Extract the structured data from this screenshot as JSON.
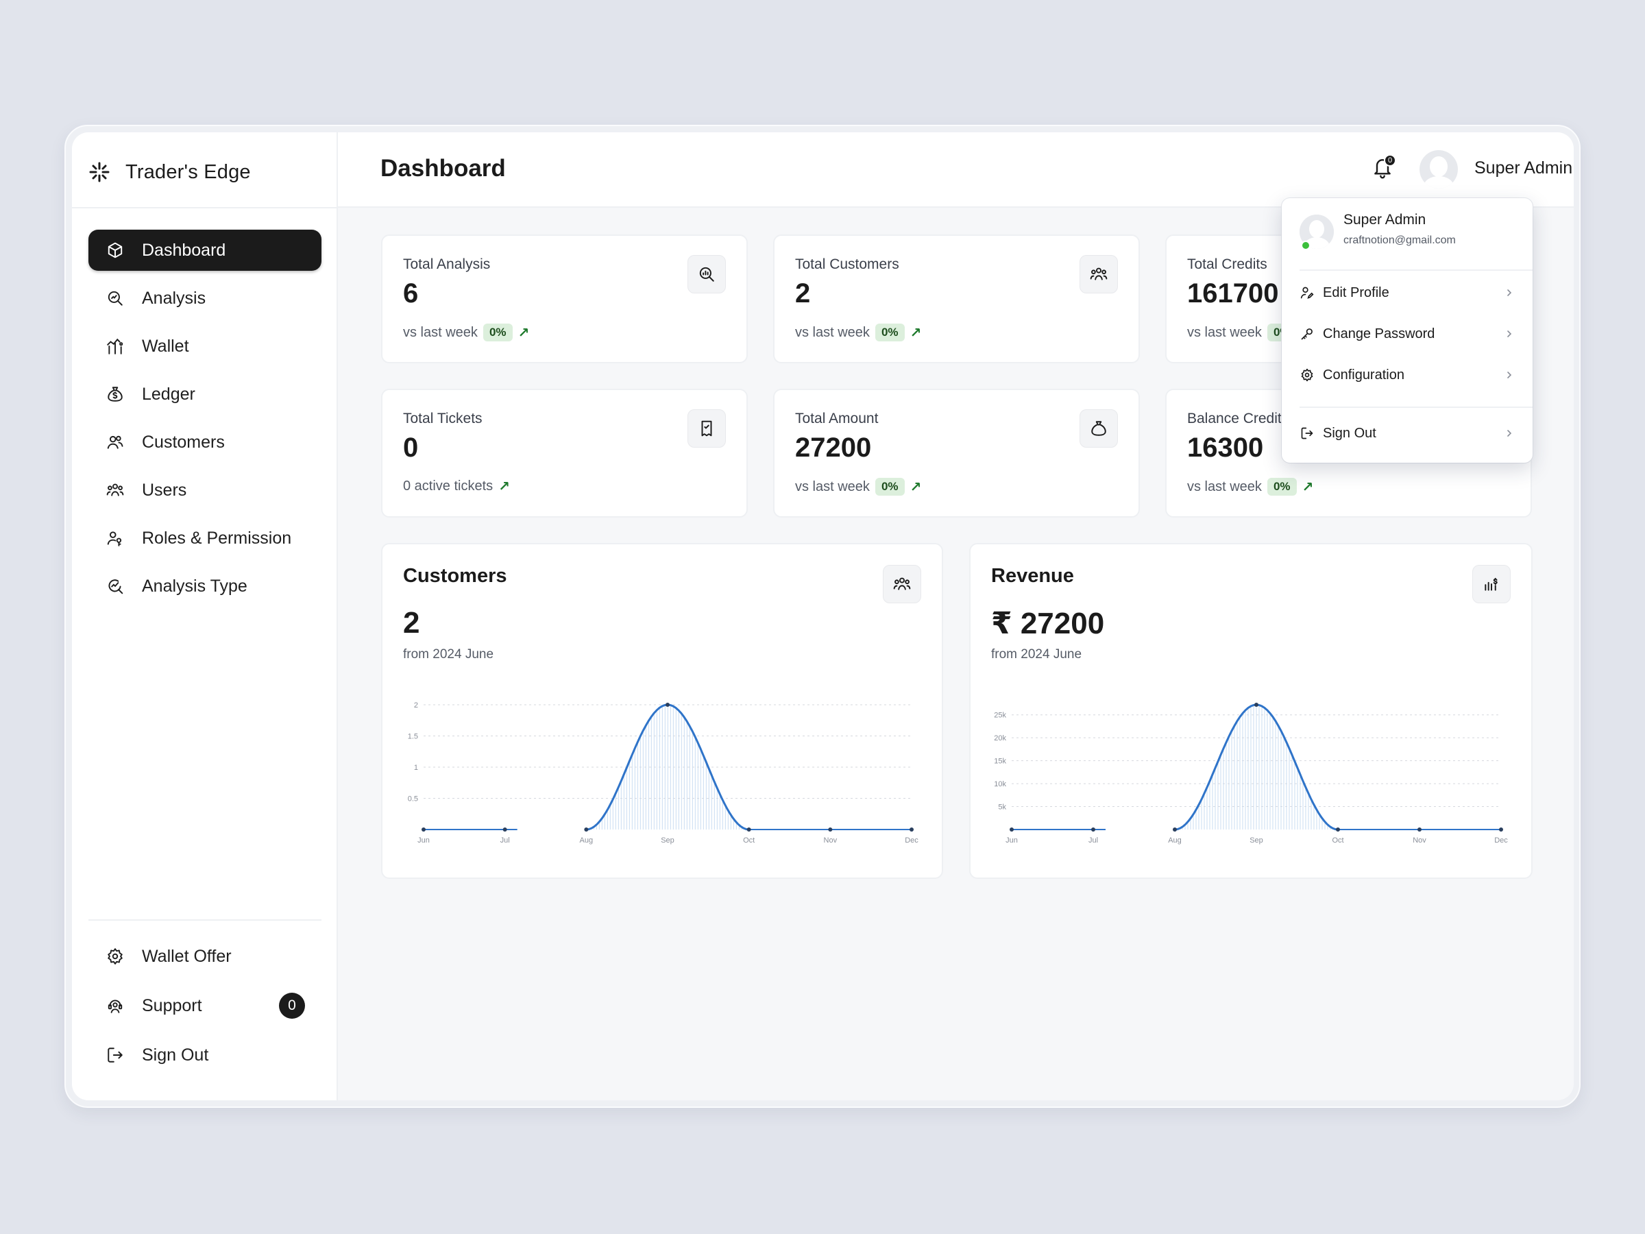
{
  "app": {
    "name": "Trader's Edge"
  },
  "sidebar": {
    "items": [
      {
        "label": "Dashboard",
        "icon": "cube-icon",
        "active": true
      },
      {
        "label": "Analysis",
        "icon": "analysis-search-icon"
      },
      {
        "label": "Wallet",
        "icon": "wallet-icon"
      },
      {
        "label": "Ledger",
        "icon": "money-bag-icon"
      },
      {
        "label": "Customers",
        "icon": "customers-icon"
      },
      {
        "label": "Users",
        "icon": "users-icon"
      },
      {
        "label": "Roles & Permission",
        "icon": "user-key-icon"
      },
      {
        "label": "Analysis Type",
        "icon": "analysis-type-icon"
      }
    ],
    "bottom": [
      {
        "label": "Wallet Offer",
        "icon": "gear-icon"
      },
      {
        "label": "Support",
        "icon": "support-icon",
        "badge": "0"
      },
      {
        "label": "Sign Out",
        "icon": "sign-out-icon"
      }
    ]
  },
  "header": {
    "title": "Dashboard",
    "notification_count": "0",
    "user_name": "Super Admin"
  },
  "stats": [
    {
      "label": "Total Analysis",
      "value": "6",
      "footer": "vs last week",
      "pct": "0%",
      "icon": "search-chart-icon"
    },
    {
      "label": "Total Customers",
      "value": "2",
      "footer": "vs last week",
      "pct": "0%",
      "icon": "customers-icon"
    },
    {
      "label": "Total Credits",
      "value": "161700",
      "footer": "vs last week",
      "pct": "0%",
      "icon": "credits-icon"
    },
    {
      "label": "Total Tickets",
      "value": "0",
      "footer": "0 active tickets",
      "pct": "",
      "icon": "ticket-icon"
    },
    {
      "label": "Total Amount",
      "value": "27200",
      "footer": "vs last week",
      "pct": "0%",
      "icon": "money-bag-icon"
    },
    {
      "label": "Balance Credits",
      "value": "16300",
      "footer": "vs last week",
      "pct": "0%",
      "icon": "balance-icon"
    }
  ],
  "customers_card": {
    "title": "Customers",
    "value": "2",
    "subtitle": "from 2024 June",
    "icon": "customers-icon"
  },
  "revenue_card": {
    "title": "Revenue",
    "value": "₹ 27200",
    "subtitle": "from 2024 June",
    "icon": "revenue-chart-icon"
  },
  "dropdown": {
    "name": "Super Admin",
    "email": "craftnotion@gmail.com",
    "items": [
      {
        "label": "Edit Profile",
        "icon": "edit-profile-icon"
      },
      {
        "label": "Change Password",
        "icon": "key-icon"
      },
      {
        "label": "Configuration",
        "icon": "gear-icon"
      }
    ],
    "sign_out": {
      "label": "Sign Out",
      "icon": "sign-out-icon"
    }
  },
  "colors": {
    "accent": "#1b1b1b",
    "line": "#2f74c9",
    "positive_bg": "#dcefdc",
    "positive_text": "#1f7a2d"
  },
  "chart_data": [
    {
      "type": "line",
      "x": [
        "Jun",
        "Jul",
        "Aug",
        "Sep",
        "Oct",
        "Nov",
        "Dec"
      ],
      "series": [
        {
          "values": [
            0,
            0,
            0,
            2,
            0,
            0,
            0
          ]
        }
      ],
      "yticks": [
        "0.5",
        "1",
        "1.5",
        "2"
      ],
      "ylim": [
        0,
        2
      ],
      "grid": true
    },
    {
      "type": "line",
      "x": [
        "Jun",
        "Jul",
        "Aug",
        "Sep",
        "Oct",
        "Nov",
        "Dec"
      ],
      "series": [
        {
          "values": [
            0,
            0,
            0,
            27200,
            0,
            0,
            0
          ]
        }
      ],
      "yticks": [
        "5k",
        "10k",
        "15k",
        "20k",
        "25k"
      ],
      "ylim": [
        0,
        27200
      ],
      "grid": true
    }
  ]
}
